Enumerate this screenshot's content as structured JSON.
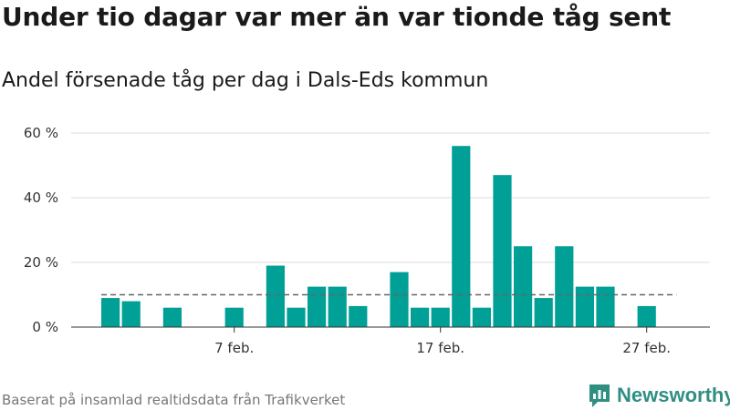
{
  "title": "Under tio dagar var mer än var tionde tåg sent",
  "subtitle": "Andel försenade tåg per dag i Dals-Eds kommun",
  "source": "Baserat på insamlad realtidsdata från Trafikverket",
  "brand": {
    "name": "Newsworthy",
    "color": "#2f8f83"
  },
  "chart_data": {
    "type": "bar",
    "title": "Under tio dagar var mer än var tionde tåg sent",
    "subtitle": "Andel försenade tåg per dag i Dals-Eds kommun",
    "xlabel": "",
    "ylabel": "",
    "unit": "%",
    "ylim": [
      0,
      60
    ],
    "yticks": [
      0,
      20,
      40,
      60
    ],
    "ytick_labels": [
      "0 %",
      "20 %",
      "40 %",
      "60 %"
    ],
    "xticks": [
      {
        "day": 7,
        "label": "7 feb."
      },
      {
        "day": 17,
        "label": "17 feb."
      },
      {
        "day": 27,
        "label": "27 feb."
      }
    ],
    "grid": true,
    "bar_color": "#00a096",
    "reference_line": {
      "value": 10,
      "style": "dashed",
      "color": "#666666"
    },
    "days": [
      1,
      2,
      3,
      4,
      5,
      6,
      7,
      8,
      9,
      10,
      11,
      12,
      13,
      14,
      15,
      16,
      17,
      18,
      19,
      20,
      21,
      22,
      23,
      24,
      25,
      26,
      27,
      28
    ],
    "values": [
      9,
      8,
      null,
      6,
      null,
      null,
      6,
      null,
      19,
      6,
      12.5,
      12.5,
      6.5,
      null,
      17,
      6,
      6,
      56,
      6,
      47,
      25,
      9,
      25,
      12.5,
      12.5,
      null,
      6.5,
      null
    ]
  }
}
